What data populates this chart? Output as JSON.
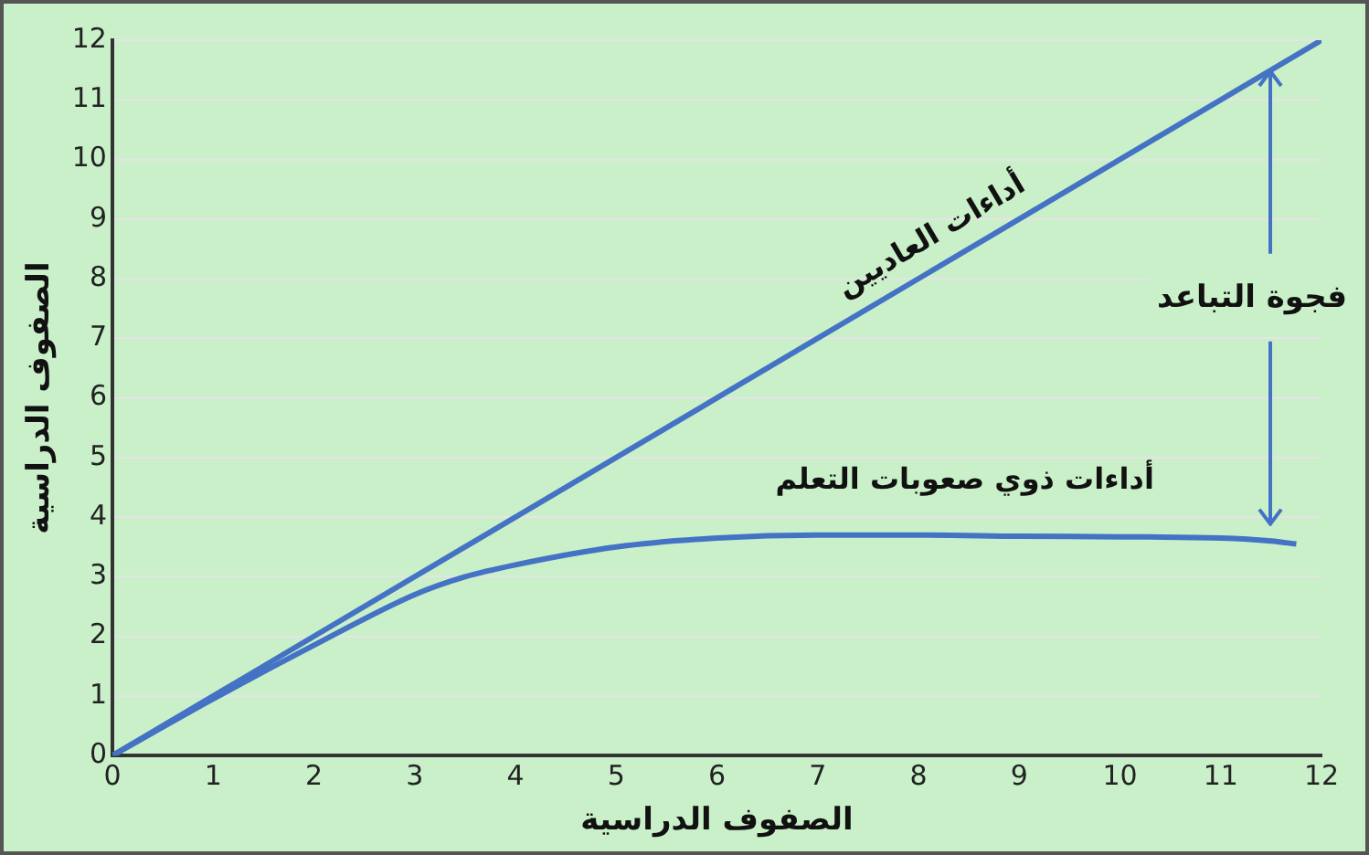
{
  "chart_data": {
    "type": "line",
    "xlabel": "الصفوف الدراسية",
    "ylabel": "الصفوف الدراسية",
    "series": [
      {
        "name": "أداءات العاديين",
        "color": "#4472c4",
        "x": [
          0,
          12
        ],
        "values": [
          0,
          12
        ]
      },
      {
        "name": "أداءات ذوي صعوبات التعلم",
        "color": "#4472c4",
        "x": [
          0,
          1,
          2,
          3,
          3.5,
          4,
          5,
          6,
          7,
          8,
          9,
          10,
          11,
          11.5,
          11.75
        ],
        "values": [
          0,
          0.95,
          1.85,
          2.7,
          3.0,
          3.2,
          3.5,
          3.65,
          3.7,
          3.7,
          3.68,
          3.67,
          3.65,
          3.6,
          3.55
        ]
      }
    ],
    "annotations": [
      {
        "text": "فجوة التباعد",
        "x": 11.5,
        "y": 11.5
      }
    ],
    "xlim": [
      0,
      12
    ],
    "xticks": [
      0,
      1,
      2,
      3,
      4,
      5,
      6,
      7,
      8,
      9,
      10,
      11,
      12
    ],
    "ylim": [
      0,
      12
    ],
    "yticks": [
      0,
      1,
      2,
      3,
      4,
      5,
      6,
      7,
      8,
      9,
      10,
      11,
      12
    ],
    "grid": "y",
    "legend": false,
    "marker": "none",
    "line_style": "solid"
  }
}
